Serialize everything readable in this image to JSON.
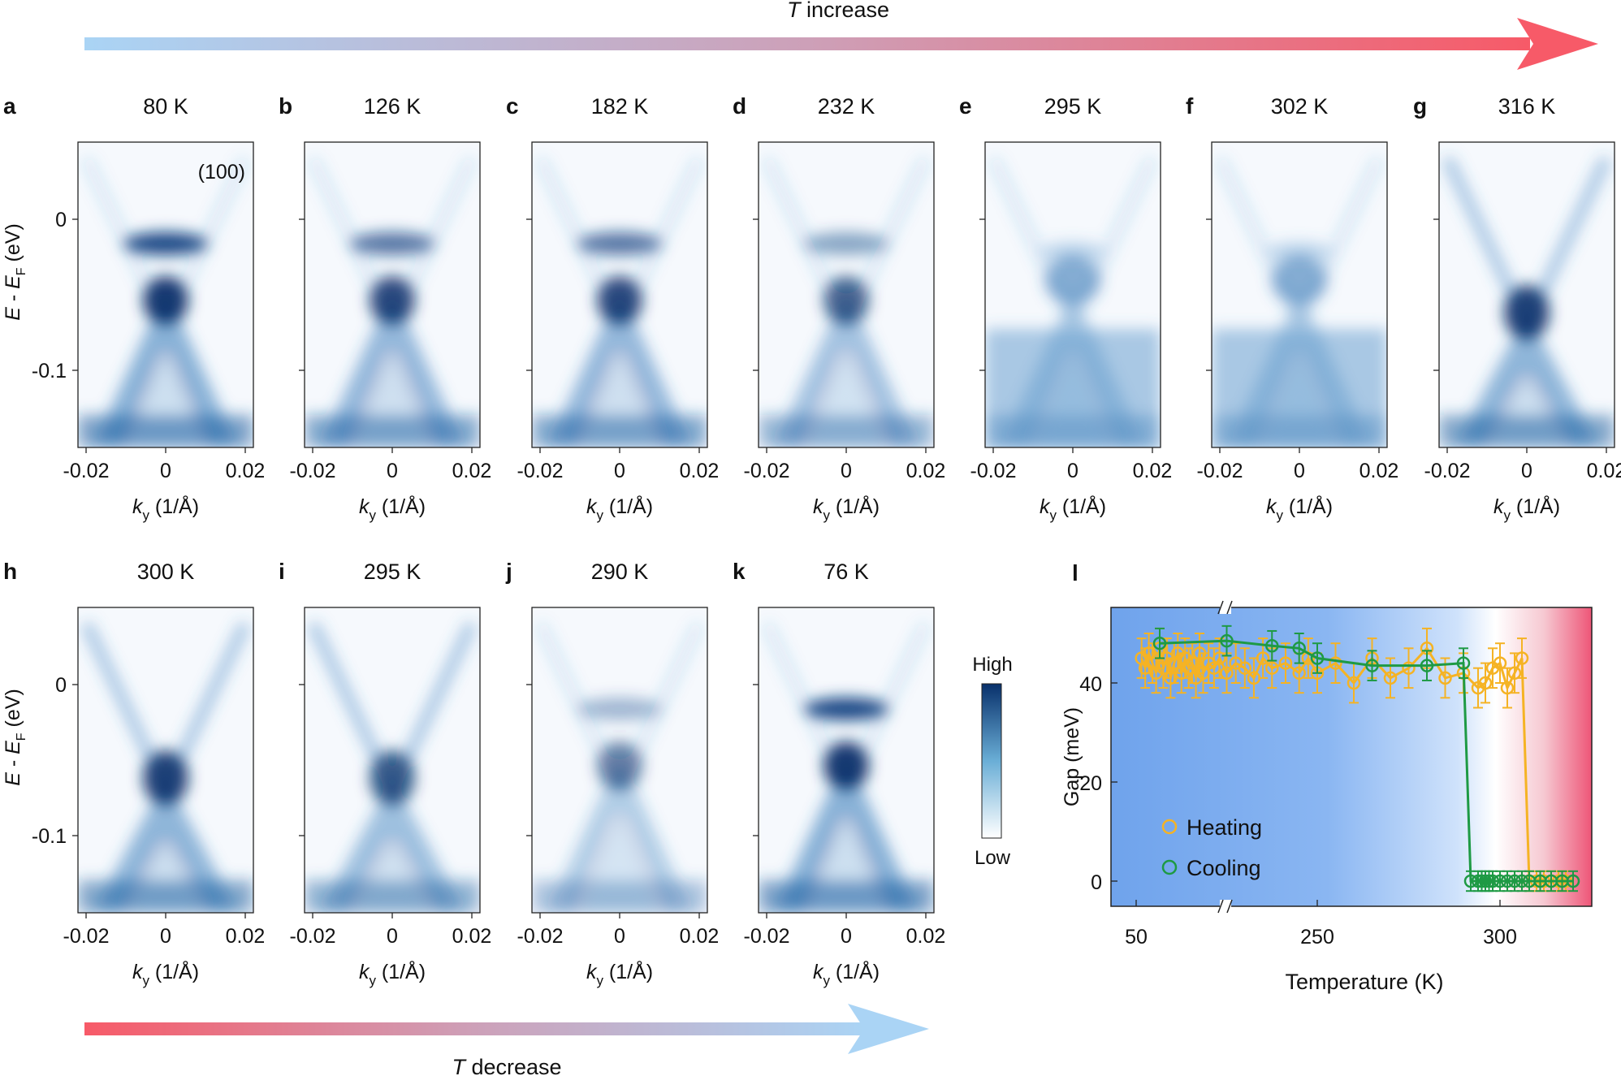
{
  "arrows": {
    "top": {
      "prefix": "T",
      "label": " increase",
      "from_color": "#aad4f5",
      "to_color": "#f75a68"
    },
    "bottom": {
      "prefix": "T",
      "label": " decrease",
      "from_color": "#f75a68",
      "to_color": "#aad4f5"
    }
  },
  "colors": {
    "map_high": "#08306b",
    "map_low": "#ffffff",
    "heating": "#f5b324",
    "cooling": "#1e9a44"
  },
  "maps": [
    {
      "letter": "a",
      "temp": "80 K",
      "annotation": "(100)",
      "profile": "gapped-strong"
    },
    {
      "letter": "b",
      "temp": "126 K",
      "profile": "gapped"
    },
    {
      "letter": "c",
      "temp": "182 K",
      "profile": "gapped"
    },
    {
      "letter": "d",
      "temp": "232 K",
      "profile": "gapped-weak"
    },
    {
      "letter": "e",
      "temp": "295 K",
      "profile": "diffuse"
    },
    {
      "letter": "f",
      "temp": "302 K",
      "profile": "diffuse"
    },
    {
      "letter": "g",
      "temp": "316 K",
      "profile": "dirac"
    },
    {
      "letter": "h",
      "temp": "300 K",
      "profile": "dirac"
    },
    {
      "letter": "i",
      "temp": "295 K",
      "profile": "dirac-weak"
    },
    {
      "letter": "j",
      "temp": "290 K",
      "profile": "gapped-faint"
    },
    {
      "letter": "k",
      "temp": "76 K",
      "profile": "gapped-strong"
    }
  ],
  "map_axes": {
    "x_ticks": [
      "-0.02",
      "0",
      "0.02"
    ],
    "x_label_k": "k",
    "x_label_sub": "y",
    "x_label_unit": " (1/Å)",
    "y_ticks": [
      "0",
      "-0.1"
    ],
    "y_label_E": "E",
    "y_label_mid": " - ",
    "y_label_EF": "E",
    "y_label_sub": "F",
    "y_label_unit": " (eV)"
  },
  "colorbar": {
    "high": "High",
    "low": "Low"
  },
  "chart_data": {
    "panel": "l",
    "type": "line",
    "xlabel": "Temperature (K)",
    "ylabel": "Gap (meV)",
    "x_ticks": [
      "50",
      "250",
      "300"
    ],
    "y_ticks": [
      "0",
      "20",
      "40"
    ],
    "ylim": [
      -5,
      55
    ],
    "x_axis_broken": true,
    "legend": [
      "Heating",
      "Cooling"
    ],
    "series": [
      {
        "name": "Heating",
        "x": [
          56,
          60,
          64,
          68,
          72,
          76,
          80,
          84,
          88,
          92,
          96,
          100,
          104,
          108,
          112,
          116,
          120,
          124,
          130,
          136,
          142,
          150,
          160,
          170,
          180,
          190,
          200,
          215,
          230,
          240,
          250,
          255,
          260,
          265,
          270,
          275,
          280,
          285,
          290,
          294,
          296,
          298,
          300,
          302,
          304,
          306,
          308,
          310,
          312,
          314,
          316,
          318
        ],
        "y": [
          45,
          43,
          46,
          44,
          42,
          47,
          43,
          45,
          41,
          44,
          46,
          42,
          45,
          43,
          44,
          41,
          46,
          42,
          44,
          43,
          45,
          42,
          44,
          43,
          41,
          45,
          43,
          44,
          42,
          45,
          42,
          44,
          40,
          45,
          41,
          43,
          47,
          41,
          42,
          39,
          40,
          43,
          44,
          39,
          42,
          45,
          0,
          0,
          0,
          0,
          0,
          0
        ],
        "err": [
          4,
          4,
          4,
          4,
          4,
          4,
          4,
          4,
          4,
          4,
          4,
          4,
          4,
          4,
          4,
          4,
          4,
          4,
          4,
          4,
          4,
          4,
          4,
          4,
          4,
          4,
          4,
          4,
          4,
          4,
          4,
          4,
          4,
          4,
          4,
          4,
          4,
          4,
          4,
          4,
          4,
          4,
          4,
          4,
          4,
          4,
          2,
          2,
          2,
          2,
          2,
          2
        ]
      },
      {
        "name": "Cooling",
        "x": [
          320,
          317,
          314,
          311,
          308,
          306,
          304,
          302,
          300,
          298,
          297,
          296,
          295,
          294,
          292,
          290,
          280,
          265,
          250,
          230,
          200,
          150,
          76
        ],
        "y": [
          0,
          0,
          0,
          0,
          0,
          0,
          0,
          0,
          0,
          0,
          0,
          0,
          0,
          0,
          0,
          44,
          43.5,
          43.5,
          45,
          47,
          47.5,
          48.5,
          48
        ],
        "err": [
          2,
          2,
          2,
          2,
          2,
          2,
          2,
          2,
          2,
          2,
          2,
          2,
          2,
          2,
          2,
          3,
          3,
          3,
          3,
          3,
          3,
          3,
          3
        ]
      }
    ]
  }
}
